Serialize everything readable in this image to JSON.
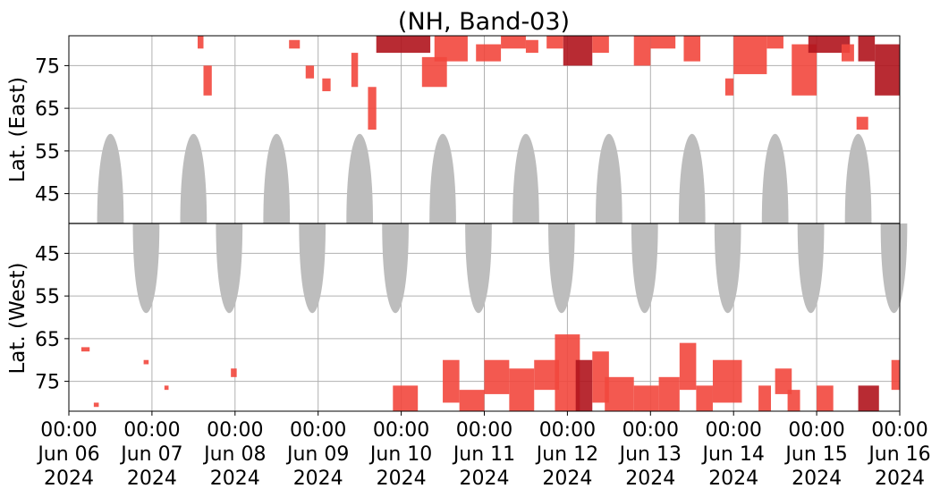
{
  "chart_data": {
    "type": "heatmap",
    "title": "(NH, Band-03)",
    "x_range": [
      "2024-06-06 00:00",
      "2024-06-16 00:00"
    ],
    "x_tick_labels": [
      [
        "00:00",
        "Jun 06",
        "2024"
      ],
      [
        "00:00",
        "Jun 07",
        "2024"
      ],
      [
        "00:00",
        "Jun 08",
        "2024"
      ],
      [
        "00:00",
        "Jun 09",
        "2024"
      ],
      [
        "00:00",
        "Jun 10",
        "2024"
      ],
      [
        "00:00",
        "Jun 11",
        "2024"
      ],
      [
        "00:00",
        "Jun 12",
        "2024"
      ],
      [
        "00:00",
        "Jun 13",
        "2024"
      ],
      [
        "00:00",
        "Jun 14",
        "2024"
      ],
      [
        "00:00",
        "Jun 15",
        "2024"
      ],
      [
        "00:00",
        "Jun 16",
        "2024"
      ]
    ],
    "panels": [
      {
        "name": "east",
        "ylabel": "Lat. (East)",
        "ylim": [
          38,
          82
        ],
        "y_ticks": [
          45,
          55,
          65,
          75
        ],
        "night_masks": [
          {
            "day": 0.5,
            "half_width": 0.16,
            "min_lat": 59
          },
          {
            "day": 1.5,
            "half_width": 0.16,
            "min_lat": 59
          },
          {
            "day": 2.5,
            "half_width": 0.16,
            "min_lat": 59
          },
          {
            "day": 3.5,
            "half_width": 0.16,
            "min_lat": 59
          },
          {
            "day": 4.5,
            "half_width": 0.16,
            "min_lat": 59
          },
          {
            "day": 5.5,
            "half_width": 0.16,
            "min_lat": 59
          },
          {
            "day": 6.5,
            "half_width": 0.16,
            "min_lat": 59
          },
          {
            "day": 7.5,
            "half_width": 0.16,
            "min_lat": 59
          },
          {
            "day": 8.5,
            "half_width": 0.16,
            "min_lat": 59
          },
          {
            "day": 9.5,
            "half_width": 0.16,
            "min_lat": 59
          }
        ],
        "echo_patches": [
          {
            "t0": 1.62,
            "t1": 1.72,
            "lat0": 68,
            "lat1": 75
          },
          {
            "t0": 1.55,
            "t1": 1.62,
            "lat0": 79,
            "lat1": 82
          },
          {
            "t0": 2.65,
            "t1": 2.78,
            "lat0": 79,
            "lat1": 81
          },
          {
            "t0": 2.85,
            "t1": 2.95,
            "lat0": 72,
            "lat1": 75
          },
          {
            "t0": 3.05,
            "t1": 3.15,
            "lat0": 69,
            "lat1": 72
          },
          {
            "t0": 3.4,
            "t1": 3.48,
            "lat0": 70,
            "lat1": 78
          },
          {
            "t0": 3.6,
            "t1": 3.7,
            "lat0": 60,
            "lat1": 70
          },
          {
            "t0": 3.7,
            "t1": 4.35,
            "lat0": 78,
            "lat1": 82,
            "strong": true
          },
          {
            "t0": 4.25,
            "t1": 4.55,
            "lat0": 70,
            "lat1": 77
          },
          {
            "t0": 4.4,
            "t1": 4.8,
            "lat0": 76,
            "lat1": 82
          },
          {
            "t0": 4.9,
            "t1": 5.2,
            "lat0": 76,
            "lat1": 80
          },
          {
            "t0": 5.2,
            "t1": 5.5,
            "lat0": 79,
            "lat1": 82
          },
          {
            "t0": 5.5,
            "t1": 5.65,
            "lat0": 78,
            "lat1": 81
          },
          {
            "t0": 5.75,
            "t1": 5.95,
            "lat0": 79,
            "lat1": 82
          },
          {
            "t0": 5.95,
            "t1": 6.3,
            "lat0": 75,
            "lat1": 82,
            "strong": true
          },
          {
            "t0": 6.3,
            "t1": 6.5,
            "lat0": 78,
            "lat1": 82
          },
          {
            "t0": 6.8,
            "t1": 7.0,
            "lat0": 75,
            "lat1": 82
          },
          {
            "t0": 7.0,
            "t1": 7.3,
            "lat0": 79,
            "lat1": 82
          },
          {
            "t0": 7.4,
            "t1": 7.6,
            "lat0": 76,
            "lat1": 82
          },
          {
            "t0": 7.9,
            "t1": 8.0,
            "lat0": 68,
            "lat1": 72
          },
          {
            "t0": 8.0,
            "t1": 8.4,
            "lat0": 73,
            "lat1": 82
          },
          {
            "t0": 8.4,
            "t1": 8.6,
            "lat0": 79,
            "lat1": 82
          },
          {
            "t0": 8.7,
            "t1": 9.0,
            "lat0": 68,
            "lat1": 80
          },
          {
            "t0": 8.9,
            "t1": 9.4,
            "lat0": 78,
            "lat1": 82,
            "strong": true
          },
          {
            "t0": 9.3,
            "t1": 9.45,
            "lat0": 76,
            "lat1": 80
          },
          {
            "t0": 9.48,
            "t1": 9.62,
            "lat0": 60,
            "lat1": 63
          },
          {
            "t0": 9.5,
            "t1": 9.7,
            "lat0": 76,
            "lat1": 82,
            "strong": true
          },
          {
            "t0": 9.7,
            "t1": 10.0,
            "lat0": 68,
            "lat1": 80,
            "strong": true
          }
        ]
      },
      {
        "name": "west",
        "ylabel": "Lat. (West)",
        "ylim": [
          82,
          38
        ],
        "y_ticks": [
          75,
          65,
          55,
          45
        ],
        "night_masks": [
          {
            "day": 0.93,
            "half_width": 0.16,
            "min_lat": 59
          },
          {
            "day": 1.93,
            "half_width": 0.16,
            "min_lat": 59
          },
          {
            "day": 2.93,
            "half_width": 0.16,
            "min_lat": 59
          },
          {
            "day": 3.93,
            "half_width": 0.16,
            "min_lat": 59
          },
          {
            "day": 4.93,
            "half_width": 0.16,
            "min_lat": 59
          },
          {
            "day": 5.93,
            "half_width": 0.16,
            "min_lat": 59
          },
          {
            "day": 6.93,
            "half_width": 0.16,
            "min_lat": 59
          },
          {
            "day": 7.93,
            "half_width": 0.16,
            "min_lat": 59
          },
          {
            "day": 8.93,
            "half_width": 0.16,
            "min_lat": 59
          },
          {
            "day": 9.93,
            "half_width": 0.16,
            "min_lat": 59
          }
        ],
        "echo_patches": [
          {
            "t0": 0.15,
            "t1": 0.25,
            "lat0": 67,
            "lat1": 68
          },
          {
            "t0": 0.3,
            "t1": 0.36,
            "lat0": 80,
            "lat1": 81
          },
          {
            "t0": 0.9,
            "t1": 0.96,
            "lat0": 70,
            "lat1": 71
          },
          {
            "t0": 1.15,
            "t1": 1.2,
            "lat0": 76,
            "lat1": 77
          },
          {
            "t0": 1.95,
            "t1": 2.02,
            "lat0": 72,
            "lat1": 74
          },
          {
            "t0": 3.9,
            "t1": 4.2,
            "lat0": 76,
            "lat1": 82
          },
          {
            "t0": 4.5,
            "t1": 4.7,
            "lat0": 70,
            "lat1": 80
          },
          {
            "t0": 4.7,
            "t1": 5.0,
            "lat0": 77,
            "lat1": 82
          },
          {
            "t0": 5.0,
            "t1": 5.3,
            "lat0": 70,
            "lat1": 78
          },
          {
            "t0": 5.3,
            "t1": 5.6,
            "lat0": 72,
            "lat1": 82
          },
          {
            "t0": 5.6,
            "t1": 5.9,
            "lat0": 70,
            "lat1": 77
          },
          {
            "t0": 5.85,
            "t1": 6.15,
            "lat0": 64,
            "lat1": 82
          },
          {
            "t0": 6.1,
            "t1": 6.3,
            "lat0": 70,
            "lat1": 82,
            "strong": true
          },
          {
            "t0": 6.3,
            "t1": 6.5,
            "lat0": 68,
            "lat1": 80
          },
          {
            "t0": 6.45,
            "t1": 6.8,
            "lat0": 74,
            "lat1": 82
          },
          {
            "t0": 6.8,
            "t1": 7.1,
            "lat0": 76,
            "lat1": 82
          },
          {
            "t0": 7.1,
            "t1": 7.35,
            "lat0": 74,
            "lat1": 82
          },
          {
            "t0": 7.35,
            "t1": 7.55,
            "lat0": 66,
            "lat1": 77
          },
          {
            "t0": 7.55,
            "t1": 7.75,
            "lat0": 76,
            "lat1": 82
          },
          {
            "t0": 7.75,
            "t1": 8.1,
            "lat0": 70,
            "lat1": 80
          },
          {
            "t0": 8.3,
            "t1": 8.45,
            "lat0": 76,
            "lat1": 82
          },
          {
            "t0": 8.5,
            "t1": 8.7,
            "lat0": 72,
            "lat1": 78
          },
          {
            "t0": 8.65,
            "t1": 8.8,
            "lat0": 77,
            "lat1": 82
          },
          {
            "t0": 9.0,
            "t1": 9.2,
            "lat0": 76,
            "lat1": 82
          },
          {
            "t0": 9.5,
            "t1": 9.75,
            "lat0": 76,
            "lat1": 82,
            "strong": true
          },
          {
            "t0": 9.9,
            "t1": 10.0,
            "lat0": 70,
            "lat1": 77
          }
        ]
      }
    ],
    "colors": {
      "echo": "#f2473d",
      "echo_strong": "#b0141d",
      "night_mask": "#bdbdbd",
      "grid": "#b0b0b0",
      "divider": "#000000"
    },
    "grid": true
  }
}
